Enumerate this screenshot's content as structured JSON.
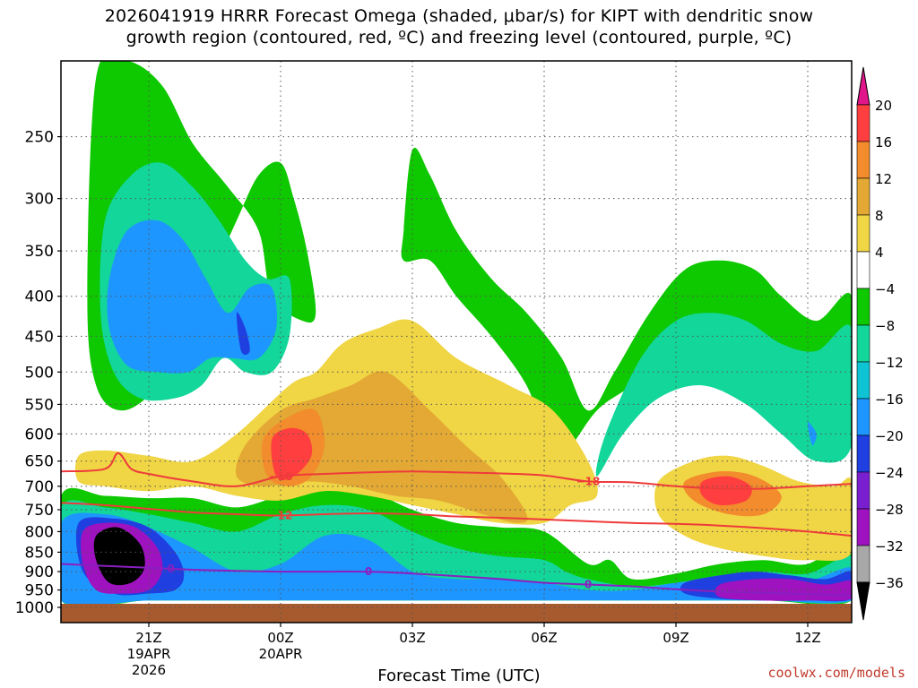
{
  "title": {
    "line1": "2026041919 HRRR Forecast Omega (shaded, μbar/s) for KIPT with dendritic snow",
    "line2": "growth region (contoured, red, ºC) and freezing level (contoured, purple, ºC)"
  },
  "credit": "coolwx.com/models",
  "chart_data": {
    "type": "heatmap",
    "xlabel": "Forecast Time (UTC)",
    "ylabel": "",
    "y_scale": "log-pressure",
    "ylim": [
      1000,
      200
    ],
    "xlim": [
      19,
      37
    ],
    "y_ticks": [
      250,
      300,
      350,
      400,
      450,
      500,
      550,
      600,
      650,
      700,
      750,
      800,
      850,
      900,
      950,
      1000
    ],
    "x_ticks": [
      {
        "hour": 21,
        "label": "21Z",
        "date": "19APR",
        "year": "2026"
      },
      {
        "hour": 24,
        "label": "00Z",
        "date": "20APR",
        "year": ""
      },
      {
        "hour": 27,
        "label": "03Z",
        "date": "",
        "year": ""
      },
      {
        "hour": 30,
        "label": "06Z",
        "date": "",
        "year": ""
      },
      {
        "hour": 33,
        "label": "09Z",
        "date": "",
        "year": ""
      },
      {
        "hour": 36,
        "label": "12Z",
        "date": "",
        "year": ""
      }
    ],
    "grid": true,
    "colorbar": {
      "placement": "right",
      "levels": [
        "20",
        "16",
        "12",
        "8",
        "4",
        "−4",
        "−8",
        "−12",
        "−16",
        "−20",
        "−24",
        "−28",
        "−32",
        "−36"
      ],
      "colors": [
        "#ff3f3f",
        "#f28c2c",
        "#e3a934",
        "#f0d544",
        "#ffffff",
        "#0ec800",
        "#12d69a",
        "#0ec4d4",
        "#1e96ff",
        "#1f3fe0",
        "#7a1fd0",
        "#9e13bf",
        "#a8a8a8"
      ],
      "top_color": "#e0168a",
      "bottom_color": "#000000"
    },
    "omega_regions": [
      {
        "level": "−8",
        "color": "#0ec800",
        "x": [
          19.8,
          20.5,
          21.3,
          22.0,
          22.8,
          23.5,
          23.8,
          24.5,
          24.8,
          24.6,
          24.3,
          24.0,
          23.5,
          23.0,
          22.4,
          21.8,
          21.2,
          20.4,
          19.8,
          19.6
        ],
        "p": [
          210,
          200,
          215,
          255,
          290,
          330,
          400,
          430,
          420,
          350,
          300,
          270,
          280,
          320,
          380,
          440,
          520,
          560,
          520,
          400
        ]
      },
      {
        "level": "−12",
        "color": "#12d69a",
        "x": [
          20.0,
          20.6,
          21.3,
          22.0,
          22.6,
          23.2,
          23.7,
          24.2,
          24.2,
          23.8,
          23.2,
          22.7,
          22.2,
          21.6,
          20.8,
          20.2,
          19.9
        ],
        "p": [
          320,
          280,
          270,
          290,
          320,
          360,
          380,
          380,
          450,
          500,
          500,
          480,
          520,
          540,
          540,
          500,
          420
        ]
      },
      {
        "level": "−16",
        "color": "#1e96ff",
        "x": [
          20.1,
          20.5,
          21.2,
          21.8,
          22.3,
          22.8,
          23.3,
          23.8,
          23.9,
          23.5,
          22.9,
          22.4,
          21.9,
          21.2,
          20.5,
          20.1
        ],
        "p": [
          380,
          330,
          320,
          340,
          380,
          420,
          390,
          390,
          440,
          480,
          480,
          480,
          500,
          500,
          490,
          440
        ]
      },
      {
        "level": "−20",
        "color": "#1f3fe0",
        "x": [
          23.0,
          23.2,
          23.3,
          23.1
        ],
        "p": [
          420,
          440,
          470,
          470
        ]
      },
      {
        "level": "−8",
        "color": "#0ec800",
        "x": [
          26.8,
          27.0,
          27.4,
          28.0,
          28.8,
          29.6,
          30.4,
          31.0,
          31.6,
          32.4,
          33.2,
          34.0,
          34.8,
          35.4,
          36.2,
          37.0,
          37.0,
          36.2,
          35.6,
          34.8,
          34.0,
          33.0,
          32.0,
          31.2,
          30.4,
          30.0,
          29.6,
          28.8,
          28.0,
          27.4,
          26.8
        ],
        "p": [
          330,
          260,
          280,
          330,
          380,
          420,
          480,
          560,
          500,
          420,
          370,
          360,
          370,
          400,
          430,
          400,
          560,
          600,
          560,
          500,
          470,
          470,
          520,
          560,
          640,
          600,
          520,
          450,
          400,
          360,
          360
        ]
      },
      {
        "level": "−12",
        "color": "#12d69a",
        "x": [
          31.4,
          32.2,
          33.0,
          33.8,
          34.6,
          35.4,
          36.2,
          37.0,
          37.0,
          36.2,
          35.4,
          34.6,
          33.6,
          32.6,
          31.8,
          31.2
        ],
        "p": [
          600,
          480,
          430,
          420,
          430,
          460,
          470,
          440,
          620,
          650,
          600,
          550,
          520,
          540,
          600,
          680
        ]
      },
      {
        "level": "−16",
        "color": "#1e96ff",
        "x": [
          36.0,
          36.2,
          36.1
        ],
        "p": [
          580,
          600,
          620
        ]
      },
      {
        "level": "−8",
        "color": "#0ec800",
        "x": [
          19.0,
          20.0,
          21.0,
          22.0,
          23.0,
          24.0,
          25.0,
          26.0,
          27.0,
          28.0,
          29.0,
          30.0,
          31.0,
          31.5,
          32.0,
          33.0,
          34.0,
          35.0,
          36.0,
          37.0,
          37.0,
          35.0,
          33.0,
          31.0,
          29.0,
          27.0,
          25.0,
          23.0,
          21.0,
          19.0
        ],
        "p": [
          720,
          720,
          725,
          725,
          745,
          720,
          705,
          710,
          750,
          780,
          790,
          800,
          880,
          870,
          920,
          905,
          880,
          870,
          880,
          820,
          980,
          980,
          980,
          980,
          980,
          980,
          980,
          980,
          980,
          980
        ]
      },
      {
        "level": "−12",
        "color": "#12d69a",
        "x": [
          19.0,
          20.0,
          21.0,
          22.0,
          23.0,
          24.0,
          25.0,
          26.0,
          27.0,
          28.0,
          29.0,
          30.0,
          30.5,
          31.0,
          32.0,
          33.0,
          34.0,
          35.0,
          36.0,
          37.0,
          37.0,
          35.0,
          33.0,
          31.0,
          29.0,
          27.0,
          25.0,
          23.0,
          21.0,
          19.0
        ],
        "p": [
          745,
          745,
          760,
          780,
          800,
          760,
          740,
          750,
          800,
          840,
          860,
          870,
          900,
          920,
          940,
          930,
          910,
          900,
          905,
          860,
          980,
          980,
          980,
          980,
          980,
          980,
          980,
          980,
          980,
          980
        ]
      },
      {
        "level": "−16",
        "color": "#1e96ff",
        "x": [
          19.0,
          20.0,
          21.0,
          22.0,
          23.0,
          24.0,
          25.0,
          26.0,
          27.0,
          28.0,
          29.0,
          30.0,
          31.0,
          32.0,
          33.0,
          34.0,
          35.0,
          36.0,
          37.0,
          37.0,
          35.0,
          33.0,
          31.0,
          29.0,
          27.0,
          25.0,
          23.0,
          21.0,
          19.0
        ],
        "p": [
          780,
          760,
          790,
          840,
          900,
          880,
          810,
          820,
          900,
          920,
          920,
          930,
          950,
          950,
          930,
          920,
          915,
          925,
          890,
          980,
          980,
          980,
          980,
          980,
          980,
          980,
          980,
          980,
          980
        ]
      },
      {
        "level": "−20",
        "color": "#1f3fe0",
        "x": [
          19.4,
          20.2,
          21.0,
          21.6,
          21.8,
          21.6,
          21.0,
          20.2,
          19.5
        ],
        "p": [
          780,
          770,
          790,
          850,
          910,
          950,
          960,
          960,
          900
        ]
      },
      {
        "level": "−28",
        "color": "#9e13bf",
        "x": [
          19.5,
          20.0,
          20.7,
          21.2,
          21.3,
          21.0,
          20.4,
          19.8,
          19.5
        ],
        "p": [
          800,
          780,
          790,
          840,
          900,
          950,
          960,
          950,
          880
        ]
      },
      {
        "level": "−36",
        "color": "#000000",
        "x": [
          19.8,
          20.3,
          20.8,
          20.9,
          20.6,
          20.1,
          19.8
        ],
        "p": [
          810,
          790,
          830,
          890,
          930,
          930,
          870
        ]
      },
      {
        "level": "−20",
        "color": "#1f3fe0",
        "x": [
          33.2,
          34.0,
          34.8,
          35.6,
          36.4,
          37.0,
          37.0,
          36.0,
          35.0,
          34.0,
          33.2
        ],
        "p": [
          930,
          910,
          900,
          910,
          920,
          900,
          975,
          980,
          980,
          975,
          960
        ]
      },
      {
        "level": "−28",
        "color": "#9e13bf",
        "x": [
          34.0,
          34.8,
          35.6,
          36.4,
          37.0,
          37.0,
          36.0,
          35.0,
          34.0
        ],
        "p": [
          935,
          920,
          920,
          935,
          925,
          975,
          980,
          980,
          970
        ]
      },
      {
        "level": "4",
        "color": "#f0d544",
        "x": [
          24.2,
          24.8,
          25.4,
          26.2,
          27.0,
          28.0,
          29.2,
          30.2,
          31.0,
          31.2,
          30.6,
          30.0,
          29.0,
          28.0,
          27.0,
          26.0,
          25.0,
          24.0,
          23.0,
          22.0,
          21.0,
          20.0,
          19.4,
          19.4,
          20.0,
          21.0,
          22.0,
          23.0
        ],
        "p": [
          520,
          500,
          460,
          440,
          430,
          480,
          520,
          560,
          650,
          720,
          740,
          780,
          780,
          760,
          740,
          720,
          710,
          730,
          720,
          700,
          710,
          700,
          690,
          640,
          630,
          640,
          650,
          600
        ]
      },
      {
        "level": "8",
        "color": "#e3a934",
        "x": [
          23.2,
          24.0,
          24.8,
          25.6,
          26.4,
          27.4,
          28.2,
          29.0,
          29.6,
          29.4,
          28.6,
          27.6,
          26.6,
          25.6,
          24.6,
          23.6,
          23.0
        ],
        "p": [
          620,
          560,
          540,
          520,
          500,
          560,
          620,
          680,
          760,
          780,
          760,
          730,
          720,
          700,
          690,
          700,
          680
        ]
      },
      {
        "level": "12",
        "color": "#f28c2c",
        "x": [
          23.6,
          24.2,
          24.8,
          25.0,
          24.7,
          24.2,
          23.7
        ],
        "p": [
          610,
          570,
          560,
          620,
          680,
          700,
          680
        ]
      },
      {
        "level": "16",
        "color": "#ff3f3f",
        "x": [
          23.8,
          24.2,
          24.6,
          24.7,
          24.3,
          23.9
        ],
        "p": [
          610,
          590,
          600,
          640,
          680,
          680
        ]
      },
      {
        "level": "4",
        "color": "#f0d544",
        "x": [
          32.6,
          33.4,
          34.2,
          35.0,
          35.8,
          36.6,
          37.0,
          37.0,
          36.0,
          35.0,
          34.0,
          33.2,
          32.6
        ],
        "p": [
          690,
          650,
          640,
          660,
          690,
          700,
          690,
          850,
          870,
          860,
          840,
          810,
          760
        ]
      },
      {
        "level": "12",
        "color": "#f28c2c",
        "x": [
          33.2,
          34.0,
          34.8,
          35.4,
          35.0,
          34.2,
          33.4
        ],
        "p": [
          690,
          670,
          680,
          720,
          760,
          760,
          730
        ]
      },
      {
        "level": "16",
        "color": "#ff3f3f",
        "x": [
          33.6,
          34.2,
          34.7,
          34.6,
          34.0,
          33.6
        ],
        "p": [
          690,
          680,
          700,
          730,
          740,
          720
        ]
      }
    ],
    "contours": [
      {
        "name": "-18",
        "color": "#ee3b3b",
        "label": "−18",
        "x": [
          19,
          20,
          20.3,
          20.6,
          21,
          22,
          23,
          24,
          25,
          26,
          27,
          28,
          29,
          30,
          31,
          32,
          33,
          34,
          35,
          36,
          37
        ],
        "p": [
          670,
          665,
          635,
          665,
          675,
          690,
          700,
          680,
          675,
          672,
          670,
          672,
          674,
          678,
          690,
          692,
          700,
          705,
          705,
          700,
          695
        ]
      },
      {
        "name": "-12",
        "color": "#ee3b3b",
        "label": "−12",
        "x": [
          19,
          20,
          21,
          22,
          23,
          24,
          25,
          26,
          27,
          28,
          29,
          30,
          31,
          32,
          33,
          34,
          35,
          36,
          37
        ],
        "p": [
          735,
          740,
          748,
          756,
          760,
          763,
          760,
          758,
          760,
          765,
          768,
          772,
          776,
          780,
          782,
          786,
          792,
          800,
          810
        ]
      },
      {
        "name": "0",
        "color": "#8a1fc0",
        "label": "0",
        "x": [
          19,
          20,
          21,
          22,
          23,
          24,
          25,
          26,
          27,
          28,
          29,
          30,
          31,
          32,
          33,
          34,
          35,
          36,
          37
        ],
        "p": [
          880,
          885,
          890,
          895,
          898,
          900,
          900,
          900,
          905,
          912,
          920,
          930,
          935,
          940,
          948,
          955,
          958,
          962,
          965
        ]
      }
    ]
  }
}
